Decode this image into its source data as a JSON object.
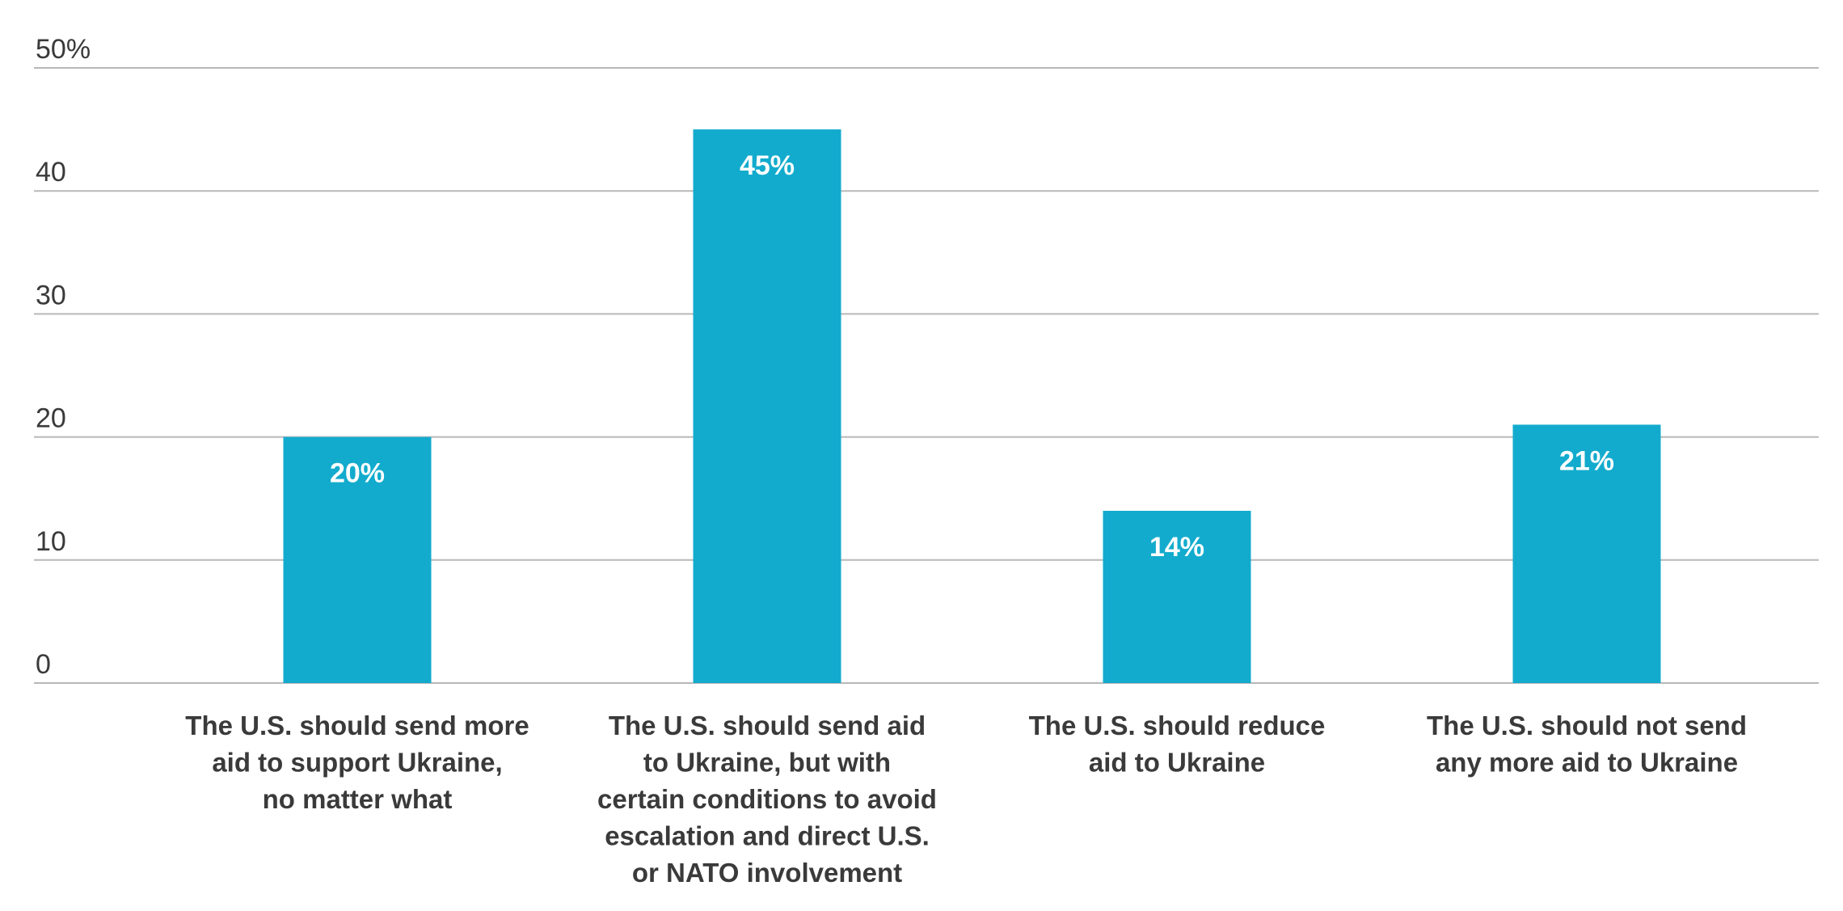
{
  "chart_data": {
    "type": "bar",
    "categories": [
      [
        "The U.S. should send more",
        "aid to support Ukraine,",
        "no matter what"
      ],
      [
        "The U.S. should send aid",
        "to Ukraine, but with",
        "certain conditions to avoid",
        "escalation and direct U.S.",
        "or NATO involvement"
      ],
      [
        "The U.S. should reduce",
        "aid to Ukraine"
      ],
      [
        "The U.S. should not send",
        "any more aid to Ukraine"
      ]
    ],
    "values": [
      20,
      45,
      14,
      21
    ],
    "value_labels": [
      "20%",
      "45%",
      "14%",
      "21%"
    ],
    "ylim": [
      0,
      50
    ],
    "y_ticks": [
      0,
      10,
      20,
      30,
      40,
      50
    ],
    "y_tick_labels": [
      "0",
      "10",
      "20",
      "30",
      "40",
      "50%"
    ],
    "grid": true,
    "colors": {
      "bar": "#12abcd",
      "grid": "#b8b8b8",
      "text": "#3a3a3a",
      "value_text": "#ffffff"
    }
  }
}
